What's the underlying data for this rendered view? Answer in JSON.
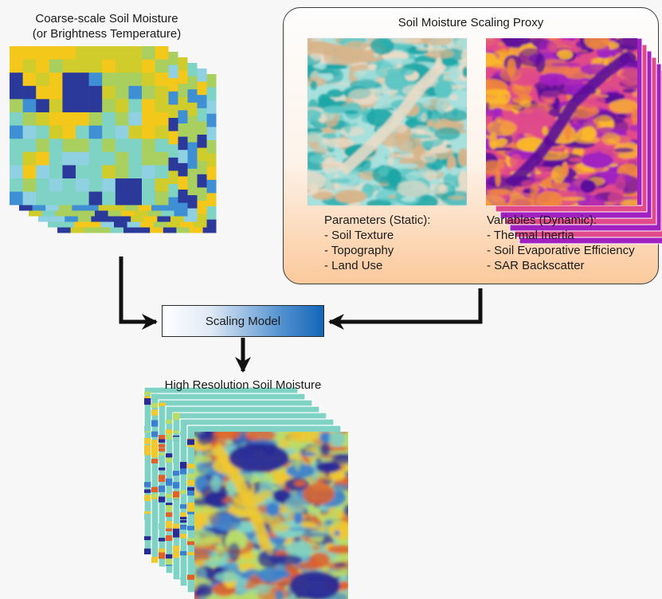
{
  "coarse": {
    "title_line1": "Coarse-scale Soil Moisture",
    "title_line2": "(or Brightness Temperature)"
  },
  "proxy": {
    "title": "Soil Moisture Scaling Proxy",
    "static": {
      "heading": "Parameters (Static):",
      "items": [
        "- Soil Texture",
        "- Topography",
        "- Land Use"
      ]
    },
    "dynamic": {
      "heading": "Variables (Dynamic):",
      "items": [
        "- Thermal Inertia",
        "- Soil Evaporative Efficiency",
        "- SAR Backscatter"
      ]
    }
  },
  "model": {
    "label": "Scaling Model"
  },
  "output": {
    "title": "High Resolution Soil Moisture"
  },
  "colors": {
    "coarse_palette": [
      "#2b3a9a",
      "#3f8fd4",
      "#8fd0e2",
      "#7fd3c4",
      "#a9cf5f",
      "#d0cc2c",
      "#f3c81b"
    ],
    "static_palette": [
      "#1aa6a6",
      "#5cc6c4",
      "#a7e0dd",
      "#e9dcc8",
      "#d8b48a"
    ],
    "dynamic_palette": [
      "#5a0f9a",
      "#a020c0",
      "#e04a8a",
      "#f28a3a",
      "#fbb82a"
    ],
    "hires_palette": [
      "#2a2a96",
      "#3a7fd0",
      "#7fd2c4",
      "#b8dc6a",
      "#f0c830",
      "#e0602a"
    ],
    "arrow": "#111111"
  }
}
